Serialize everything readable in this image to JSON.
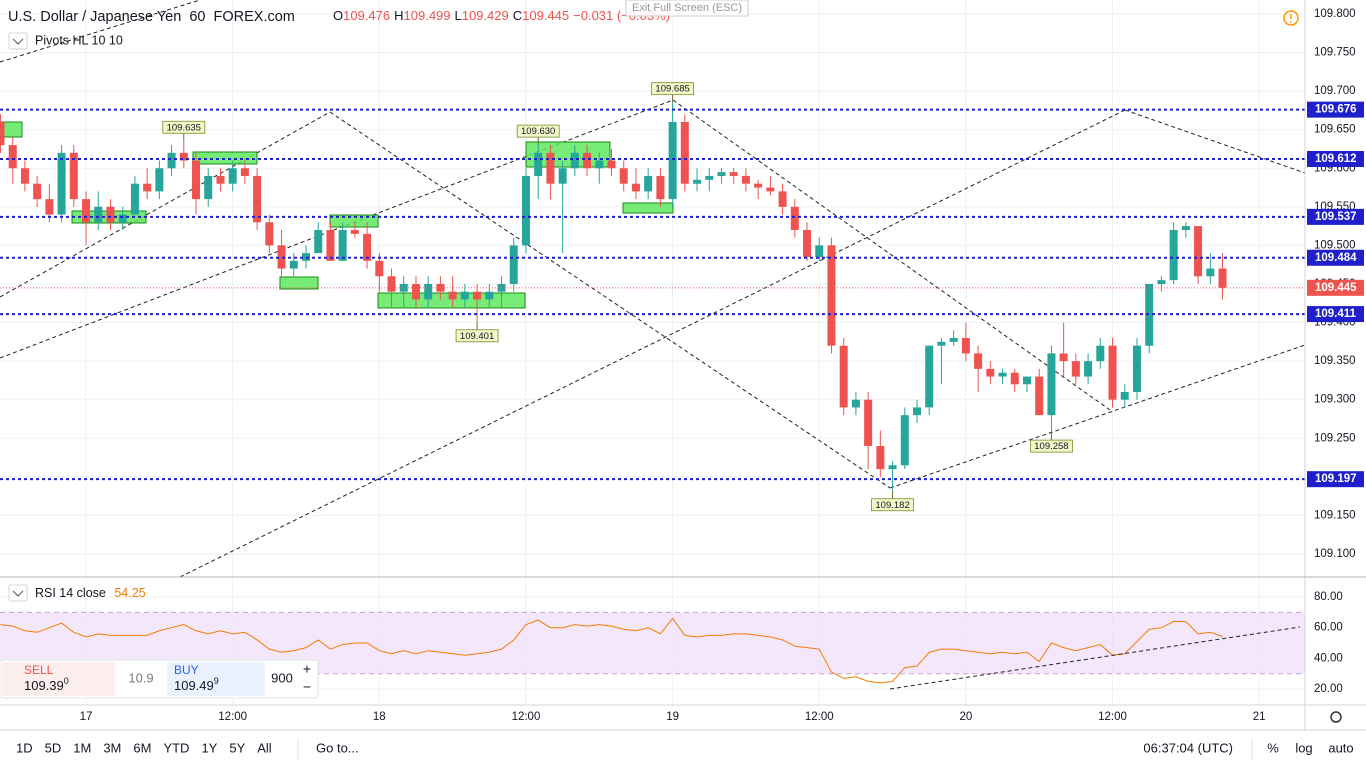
{
  "header": {
    "symbol": "U.S. Dollar / Japanese Yen",
    "interval": "60",
    "exchange": "FOREX.com",
    "ohlc": [
      {
        "key": "O",
        "value": "109.476"
      },
      {
        "key": "H",
        "value": "109.499"
      },
      {
        "key": "L",
        "value": "109.429"
      },
      {
        "key": "C",
        "value": "109.445"
      }
    ],
    "change": "−0.031 (−0.03%)",
    "exit_fullscreen": "Exit Full Screen (ESC)",
    "indicator": "Pivots HL 10 10"
  },
  "rsi_header": "RSI 14 close",
  "trade_panel": {
    "sell_label": "SELL",
    "sell_price": "109.39",
    "sell_pip": "0",
    "spread": "10.9",
    "buy_label": "BUY",
    "buy_price": "109.49",
    "buy_pip": "9",
    "quantity": "900",
    "plus": "+",
    "minus": "−"
  },
  "bottom_bar": {
    "ranges": [
      "1D",
      "5D",
      "1M",
      "3M",
      "6M",
      "YTD",
      "1Y",
      "5Y",
      "All"
    ],
    "goto": "Go to...",
    "clock": "06:37:04 (UTC)",
    "percent": "%",
    "log": "log",
    "auto": "auto"
  },
  "chart_data": [
    {
      "type": "candlestick",
      "up_color": "#26a69a",
      "down_color": "#ef5350",
      "grid": true,
      "xlim": [
        -7.04,
        99.75
      ],
      "xticks": [
        {
          "value": 0,
          "label": "17"
        },
        {
          "value": 12,
          "label": "12:00"
        },
        {
          "value": 24,
          "label": "18"
        },
        {
          "value": 36,
          "label": "12:00"
        },
        {
          "value": 48,
          "label": "19"
        },
        {
          "value": 60,
          "label": "12:00"
        },
        {
          "value": 72,
          "label": "20"
        },
        {
          "value": 84,
          "label": "12:00"
        },
        {
          "value": 96,
          "label": "21"
        }
      ],
      "ylim": [
        109.0702,
        109.8181
      ],
      "yticks": [
        {
          "value": 109.8,
          "label": "109.800"
        },
        {
          "value": 109.75,
          "label": "109.750"
        },
        {
          "value": 109.7,
          "label": "109.700"
        },
        {
          "value": 109.65,
          "label": "109.650"
        },
        {
          "value": 109.6,
          "label": "109.600"
        },
        {
          "value": 109.55,
          "label": "109.550"
        },
        {
          "value": 109.5,
          "label": "109.500"
        },
        {
          "value": 109.45,
          "label": "109.450"
        },
        {
          "value": 109.4,
          "label": "109.400"
        },
        {
          "value": 109.35,
          "label": "109.350"
        },
        {
          "value": 109.3,
          "label": "109.300"
        },
        {
          "value": 109.25,
          "label": "109.250"
        },
        {
          "value": 109.2,
          "label": "109.200"
        },
        {
          "value": 109.15,
          "label": "109.150"
        },
        {
          "value": 109.1,
          "label": "109.100"
        }
      ],
      "x": [
        -7,
        -6,
        -5,
        -4,
        -3,
        -2,
        -1,
        0,
        1,
        2,
        3,
        4,
        5,
        6,
        7,
        8,
        9,
        10,
        11,
        12,
        13,
        14,
        15,
        16,
        17,
        18,
        19,
        20,
        21,
        22,
        23,
        24,
        25,
        26,
        27,
        28,
        29,
        30,
        31,
        32,
        33,
        34,
        35,
        36,
        37,
        38,
        39,
        40,
        41,
        42,
        43,
        44,
        45,
        46,
        47,
        48,
        49,
        50,
        51,
        52,
        53,
        54,
        55,
        56,
        57,
        58,
        59,
        60,
        61,
        62,
        63,
        64,
        65,
        66,
        67,
        68,
        69,
        70,
        71,
        72,
        73,
        74,
        75,
        76,
        77,
        78,
        79,
        80,
        81,
        82,
        83,
        84,
        85,
        86,
        87,
        88,
        89,
        90,
        91,
        92,
        93
      ],
      "open": [
        109.66,
        109.63,
        109.6,
        109.58,
        109.56,
        109.54,
        109.62,
        109.56,
        109.53,
        109.55,
        109.53,
        109.54,
        109.58,
        109.57,
        109.6,
        109.62,
        109.61,
        109.56,
        109.59,
        109.58,
        109.6,
        109.59,
        109.53,
        109.5,
        109.47,
        109.48,
        109.49,
        109.52,
        109.48,
        109.52,
        109.515,
        109.48,
        109.46,
        109.44,
        109.45,
        109.43,
        109.45,
        109.44,
        109.43,
        109.44,
        109.43,
        109.44,
        109.45,
        109.5,
        109.59,
        109.62,
        109.58,
        109.6,
        109.62,
        109.6,
        109.61,
        109.6,
        109.58,
        109.57,
        109.59,
        109.56,
        109.66,
        109.58,
        109.585,
        109.59,
        109.595,
        109.59,
        109.58,
        109.575,
        109.57,
        109.55,
        109.52,
        109.485,
        109.5,
        109.37,
        109.29,
        109.3,
        109.24,
        109.21,
        109.215,
        109.28,
        109.29,
        109.37,
        109.375,
        109.38,
        109.36,
        109.34,
        109.33,
        109.335,
        109.32,
        109.33,
        109.28,
        109.36,
        109.35,
        109.33,
        109.35,
        109.37,
        109.3,
        109.31,
        109.37,
        109.45,
        109.455,
        109.52,
        109.525,
        109.46,
        109.47
      ],
      "high": [
        109.67,
        109.64,
        109.61,
        109.59,
        109.58,
        109.63,
        109.63,
        109.57,
        109.57,
        109.56,
        109.55,
        109.59,
        109.6,
        109.61,
        109.63,
        109.635,
        109.62,
        109.6,
        109.6,
        109.61,
        109.61,
        109.6,
        109.54,
        109.52,
        109.49,
        109.5,
        109.53,
        109.53,
        109.53,
        109.53,
        109.53,
        109.49,
        109.47,
        109.46,
        109.46,
        109.46,
        109.46,
        109.46,
        109.45,
        109.45,
        109.45,
        109.46,
        109.51,
        109.6,
        109.63,
        109.63,
        109.61,
        109.63,
        109.63,
        109.62,
        109.625,
        109.61,
        109.6,
        109.6,
        109.6,
        109.685,
        109.67,
        109.6,
        109.6,
        109.6,
        109.6,
        109.6,
        109.585,
        109.59,
        109.58,
        109.56,
        109.53,
        109.51,
        109.51,
        109.38,
        109.31,
        109.31,
        109.26,
        109.22,
        109.29,
        109.3,
        109.37,
        109.38,
        109.39,
        109.4,
        109.37,
        109.35,
        109.34,
        109.34,
        109.33,
        109.34,
        109.37,
        109.4,
        109.36,
        109.36,
        109.38,
        109.38,
        109.32,
        109.38,
        109.45,
        109.46,
        109.53,
        109.53,
        109.525,
        109.49,
        109.49
      ],
      "low": [
        109.62,
        109.58,
        109.57,
        109.55,
        109.53,
        109.53,
        109.55,
        109.5,
        109.52,
        109.52,
        109.52,
        109.54,
        109.56,
        109.56,
        109.59,
        109.6,
        109.54,
        109.55,
        109.57,
        109.57,
        109.58,
        109.52,
        109.49,
        109.46,
        109.46,
        109.47,
        109.49,
        109.48,
        109.48,
        109.51,
        109.47,
        109.44,
        109.42,
        109.42,
        109.42,
        109.42,
        109.43,
        109.42,
        109.42,
        109.401,
        109.42,
        109.42,
        109.44,
        109.49,
        109.56,
        109.56,
        109.49,
        109.59,
        109.59,
        109.58,
        109.59,
        109.57,
        109.56,
        109.56,
        109.55,
        109.55,
        109.57,
        109.57,
        109.57,
        109.58,
        109.58,
        109.57,
        109.56,
        109.565,
        109.54,
        109.51,
        109.48,
        109.48,
        109.36,
        109.28,
        109.28,
        109.21,
        109.2,
        109.182,
        109.21,
        109.27,
        109.28,
        109.32,
        109.37,
        109.35,
        109.31,
        109.32,
        109.32,
        109.31,
        109.31,
        109.28,
        109.258,
        109.33,
        109.32,
        109.32,
        109.34,
        109.29,
        109.29,
        109.3,
        109.36,
        109.44,
        109.45,
        109.51,
        109.45,
        109.45,
        109.43
      ],
      "close": [
        109.63,
        109.6,
        109.58,
        109.56,
        109.54,
        109.62,
        109.56,
        109.53,
        109.55,
        109.53,
        109.54,
        109.58,
        109.57,
        109.6,
        109.62,
        109.61,
        109.56,
        109.59,
        109.58,
        109.6,
        109.59,
        109.53,
        109.5,
        109.47,
        109.48,
        109.49,
        109.52,
        109.48,
        109.52,
        109.515,
        109.48,
        109.46,
        109.44,
        109.45,
        109.43,
        109.45,
        109.44,
        109.43,
        109.44,
        109.43,
        109.44,
        109.45,
        109.5,
        109.59,
        109.62,
        109.58,
        109.6,
        109.62,
        109.6,
        109.61,
        109.6,
        109.58,
        109.57,
        109.59,
        109.56,
        109.66,
        109.58,
        109.585,
        109.59,
        109.595,
        109.59,
        109.58,
        109.575,
        109.57,
        109.55,
        109.52,
        109.485,
        109.5,
        109.37,
        109.29,
        109.3,
        109.24,
        109.21,
        109.215,
        109.28,
        109.29,
        109.37,
        109.375,
        109.38,
        109.36,
        109.34,
        109.33,
        109.335,
        109.32,
        109.33,
        109.28,
        109.36,
        109.35,
        109.33,
        109.35,
        109.37,
        109.3,
        109.31,
        109.37,
        109.45,
        109.455,
        109.52,
        109.525,
        109.46,
        109.47,
        109.445
      ],
      "level_color": "#1f1fcc",
      "levels": [
        109.676,
        109.612,
        109.537,
        109.484,
        109.411,
        109.197
      ],
      "last_price": 109.445,
      "last_price_color": "#ef5350",
      "pivots": [
        {
          "x": 8,
          "value": 109.635,
          "label": "109.635"
        },
        {
          "x": 37,
          "value": 109.63,
          "label": "109.630"
        },
        {
          "x": 48,
          "value": 109.685,
          "label": "109.685"
        },
        {
          "x": 32,
          "value": 109.401,
          "label": "109.401"
        },
        {
          "x": 66,
          "value": 109.182,
          "label": "109.182"
        },
        {
          "x": 79,
          "value": 109.258,
          "label": "109.258"
        }
      ]
    },
    {
      "type": "line",
      "color": "#f57c00",
      "band": [
        30,
        70
      ],
      "band_color": "#f0dcfa",
      "ylim": [
        9.6,
        92.4
      ],
      "yticks": [
        {
          "value": 80,
          "label": "80.00"
        },
        {
          "value": 60,
          "label": "60.00"
        },
        {
          "value": 40,
          "label": "40.00"
        },
        {
          "value": 20,
          "label": "20.00"
        }
      ],
      "values": [
        62,
        61,
        58,
        57,
        60,
        63,
        57,
        54,
        56,
        55,
        55,
        55,
        55,
        58,
        60,
        62,
        58,
        56,
        58,
        56,
        57,
        52,
        46,
        44,
        45,
        47,
        52,
        46,
        49,
        50,
        50,
        45,
        43,
        45,
        43,
        45,
        44,
        43,
        42,
        43,
        44,
        46,
        52,
        62,
        65,
        60,
        60,
        62,
        61,
        62,
        61,
        59,
        58,
        60,
        56,
        66,
        55,
        54,
        55,
        55,
        56,
        56,
        55,
        54,
        52,
        48,
        47,
        46,
        31,
        27,
        28,
        25,
        24,
        25,
        34,
        35,
        44,
        46,
        46,
        45,
        44,
        43,
        44,
        43,
        44,
        38,
        50,
        47,
        45,
        47,
        49,
        42,
        43,
        51,
        59,
        60,
        64,
        64,
        56,
        57,
        54.25
      ]
    }
  ]
}
